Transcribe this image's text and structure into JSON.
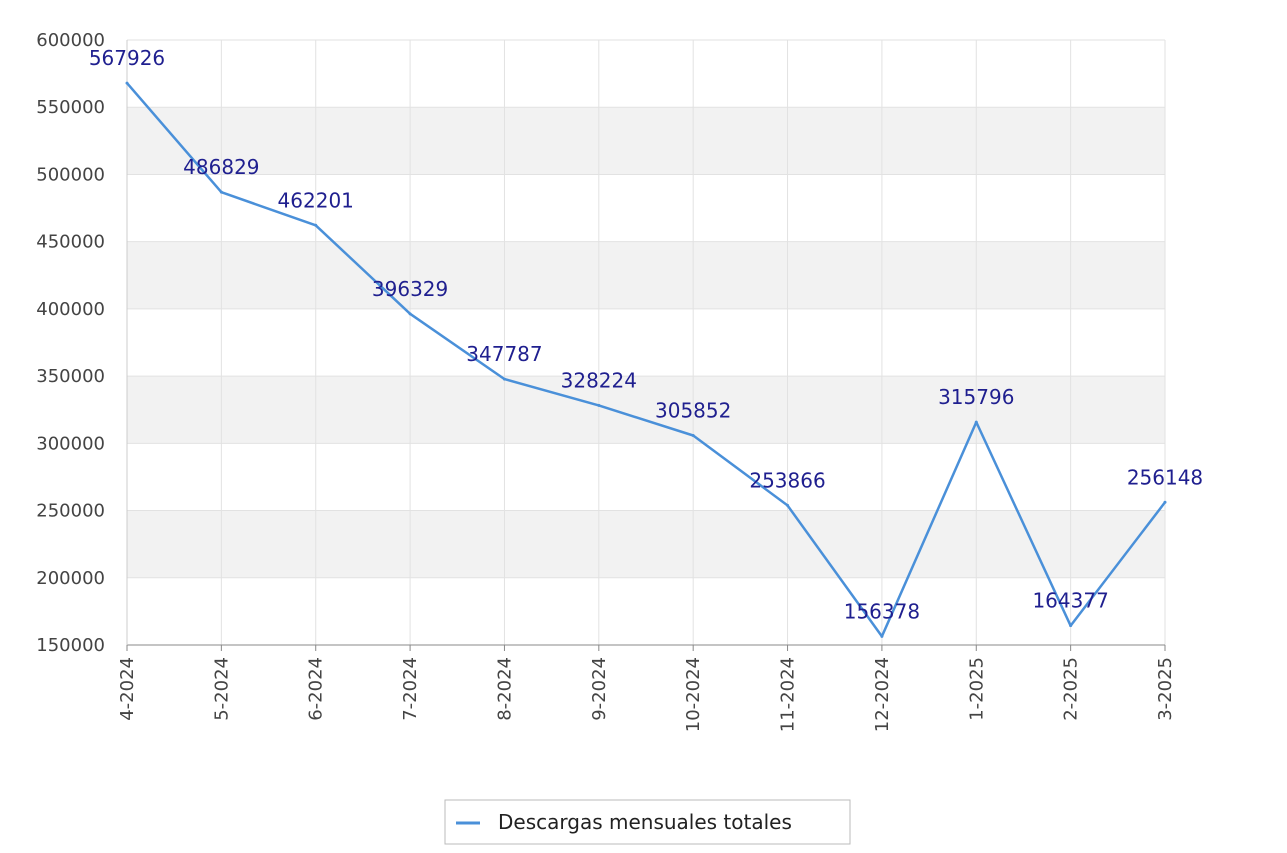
{
  "chart_data": {
    "type": "line",
    "categories": [
      "4-2024",
      "5-2024",
      "6-2024",
      "7-2024",
      "8-2024",
      "9-2024",
      "10-2024",
      "11-2024",
      "12-2024",
      "1-2025",
      "2-2025",
      "3-2025"
    ],
    "series": [
      {
        "name": "Descargas mensuales totales",
        "values": [
          567926,
          486829,
          462201,
          396329,
          347787,
          328224,
          305852,
          253866,
          156378,
          315796,
          164377,
          256148
        ],
        "color": "#4a90d9"
      }
    ],
    "title": "",
    "xlabel": "",
    "ylabel": "",
    "ylim": [
      150000,
      600000
    ],
    "yticks": [
      "150000",
      "200000",
      "250000",
      "300000",
      "350000",
      "400000",
      "450000",
      "500000",
      "550000",
      "600000"
    ],
    "grid": true,
    "band_color": "#f2f2f2",
    "legend": {
      "position": "bottom-center"
    }
  }
}
